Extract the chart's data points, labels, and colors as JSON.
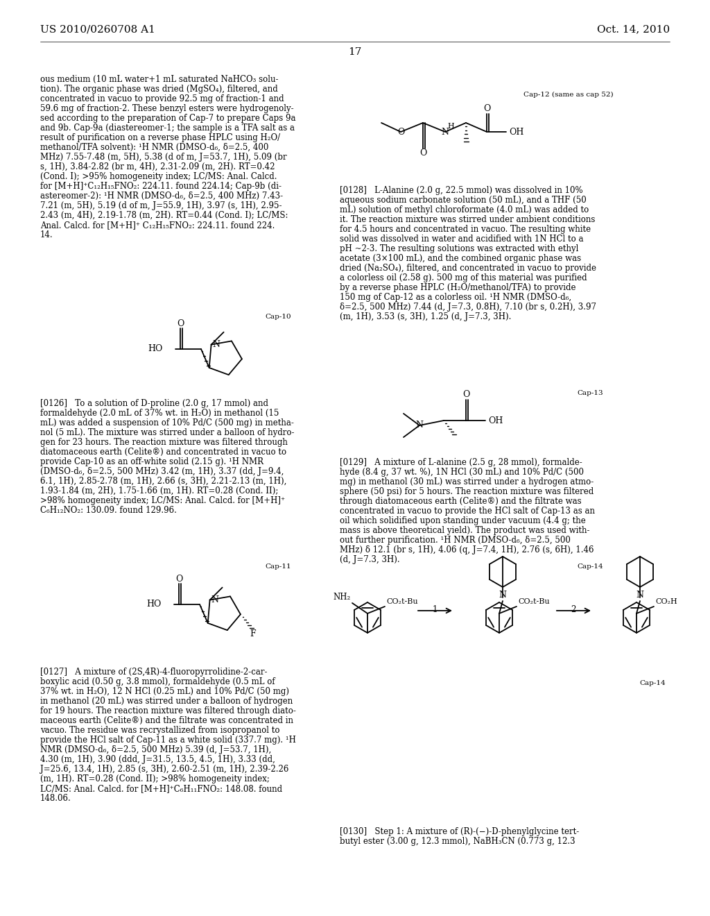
{
  "background_color": "#ffffff",
  "header_left": "US 2010/0260708 A1",
  "header_right": "Oct. 14, 2010",
  "page_number": "17",
  "left_col_top": [
    "ous medium (10 mL water+1 mL saturated NaHCO₃ solu-",
    "tion). The organic phase was dried (MgSO₄), filtered, and",
    "concentrated in vacuo to provide 92.5 mg of fraction-1 and",
    "59.6 mg of fraction-2. These benzyl esters were hydrogenoly-",
    "sed according to the preparation of Cap-7 to prepare Caps 9a",
    "and 9b. Cap-9a (diastereomer-1; the sample is a TFA salt as a",
    "result of purification on a reverse phase HPLC using H₂O/",
    "methanol/TFA solvent): ¹H NMR (DMSO-d₆, δ=2.5, 400",
    "MHz) 7.55-7.48 (m, 5H), 5.38 (d of m, J=53.7, 1H), 5.09 (br",
    "s, 1H), 3.84-2.82 (br m, 4H), 2.31-2.09 (m, 2H). RT=0.42",
    "(Cond. I); >95% homogeneity index; LC/MS: Anal. Calcd.",
    "for [M+H]⁺C₁₂H₁₅FNO₂: 224.11. found 224.14; Cap-9b (di-",
    "astereomer-2): ¹H NMR (DMSO-d₆, δ=2.5, 400 MHz) 7.43-",
    "7.21 (m, 5H), 5.19 (d of m, J=55.9, 1H), 3.97 (s, 1H), 2.95-",
    "2.43 (m, 4H), 2.19-1.78 (m, 2H). RT=0.44 (Cond. I); LC/MS:",
    "Anal. Calcd. for [M+H]⁺ C₁₂H₁₅FNO₂: 224.11. found 224.",
    "14."
  ],
  "right_col_128": [
    "[0128]   L-Alanine (2.0 g, 22.5 mmol) was dissolved in 10%",
    "aqueous sodium carbonate solution (50 mL), and a THF (50",
    "mL) solution of methyl chloroformate (4.0 mL) was added to",
    "it. The reaction mixture was stirred under ambient conditions",
    "for 4.5 hours and concentrated in vacuo. The resulting white",
    "solid was dissolved in water and acidified with 1N HCl to a",
    "pH ~2-3. The resulting solutions was extracted with ethyl",
    "acetate (3×100 mL), and the combined organic phase was",
    "dried (Na₂SO₄), filtered, and concentrated in vacuo to provide",
    "a colorless oil (2.58 g). 500 mg of this material was purified",
    "by a reverse phase HPLC (H₂O/methanol/TFA) to provide",
    "150 mg of Cap-12 as a colorless oil. ¹H NMR (DMSO-d₆,",
    "δ=2.5, 500 MHz) 7.44 (d, J=7.3, 0.8H), 7.10 (br s, 0.2H), 3.97",
    "(m, 1H), 3.53 (s, 3H), 1.25 (d, J=7.3, 3H)."
  ],
  "left_col_126": [
    "[0126]   To a solution of D-proline (2.0 g, 17 mmol) and",
    "formaldehyde (2.0 mL of 37% wt. in H₂O) in methanol (15",
    "mL) was added a suspension of 10% Pd/C (500 mg) in metha-",
    "nol (5 mL). The mixture was stirred under a balloon of hydro-",
    "gen for 23 hours. The reaction mixture was filtered through",
    "diatomaceous earth (Celite®) and concentrated in vacuo to",
    "provide Cap-10 as an off-white solid (2.15 g). ¹H NMR",
    "(DMSO-d₆, δ=2.5, 500 MHz) 3.42 (m, 1H), 3.37 (dd, J=9.4,",
    "6.1, 1H), 2.85-2.78 (m, 1H), 2.66 (s, 3H), 2.21-2.13 (m, 1H),",
    "1.93-1.84 (m, 2H), 1.75-1.66 (m, 1H). RT=0.28 (Cond. II);",
    ">98% homogeneity index; LC/MS: Anal. Calcd. for [M+H]⁺",
    "C₆H₁₂NO₂: 130.09. found 129.96."
  ],
  "right_col_129": [
    "[0129]   A mixture of L-alanine (2.5 g, 28 mmol), formalde-",
    "hyde (8.4 g, 37 wt. %), 1N HCl (30 mL) and 10% Pd/C (500",
    "mg) in methanol (30 mL) was stirred under a hydrogen atmo-",
    "sphere (50 psi) for 5 hours. The reaction mixture was filtered",
    "through diatomaceous earth (Celite®) and the filtrate was",
    "concentrated in vacuo to provide the HCl salt of Cap-13 as an",
    "oil which solidified upon standing under vacuum (4.4 g; the",
    "mass is above theoretical yield). The product was used with-",
    "out further purification. ¹H NMR (DMSO-d₆, δ=2.5, 500",
    "MHz) δ 12.1 (br s, 1H), 4.06 (q, J=7.4, 1H), 2.76 (s, 6H), 1.46",
    "(d, J=7.3, 3H)."
  ],
  "left_col_127": [
    "[0127]   A mixture of (2S,4R)-4-fluoropyrrolidine-2-car-",
    "boxylic acid (0.50 g, 3.8 mmol), formaldehyde (0.5 mL of",
    "37% wt. in H₂O), 12 N HCl (0.25 mL) and 10% Pd/C (50 mg)",
    "in methanol (20 mL) was stirred under a balloon of hydrogen",
    "for 19 hours. The reaction mixture was filtered through diato-",
    "maceous earth (Celite®) and the filtrate was concentrated in",
    "vacuo. The residue was recrystallized from isopropanol to",
    "provide the HCl salt of Cap-11 as a white solid (337.7 mg). ¹H",
    "NMR (DMSO-d₆, δ=2.5, 500 MHz) 5.39 (d, J=53.7, 1H),",
    "4.30 (m, 1H), 3.90 (ddd, J=31.5, 13.5, 4.5, 1H), 3.33 (dd,",
    "J=25.6, 13.4, 1H), 2.85 (s, 3H), 2.60-2.51 (m, 1H), 2.39-2.26",
    "(m, 1H). RT=0.28 (Cond. II); >98% homogeneity index;",
    "LC/MS: Anal. Calcd. for [M+H]⁺C₆H₁₁FNO₂: 148.08. found",
    "148.06."
  ],
  "right_col_130": [
    "[0130]   Step 1: A mixture of (R)-(−)-D-phenylglycine tert-",
    "butyl ester (3.00 g, 12.3 mmol), NaBH₃CN (0.773 g, 12.3"
  ]
}
